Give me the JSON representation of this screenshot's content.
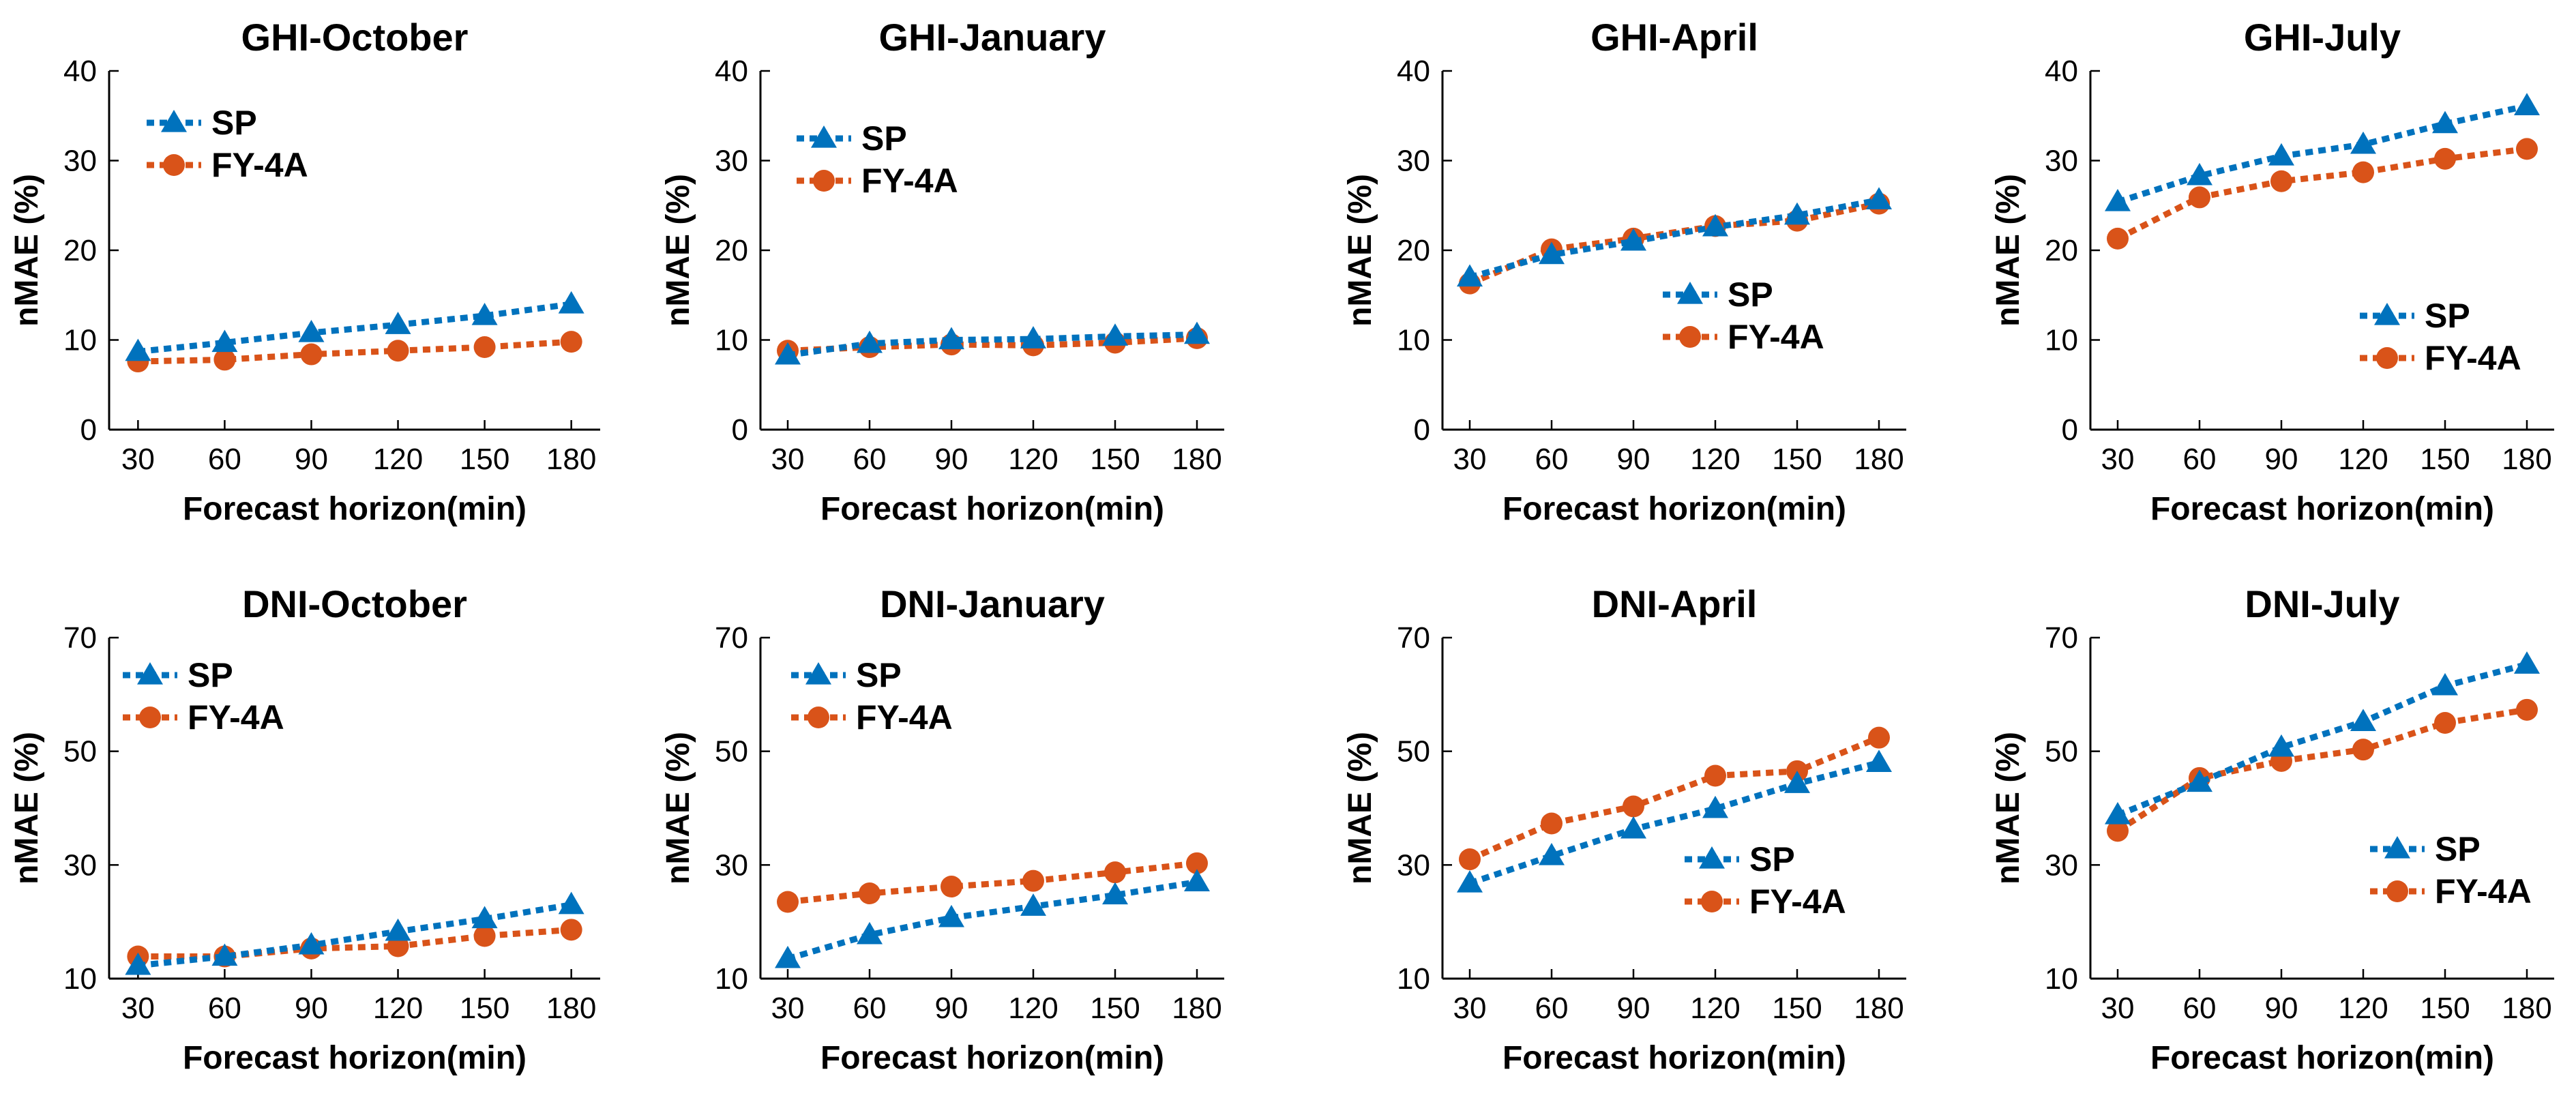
{
  "colors": {
    "SP": "#0072BD",
    "FY-4A": "#D95319",
    "axis": "#000000"
  },
  "chart_data": [
    {
      "type": "line",
      "title": "GHI-October",
      "xlabel": "Forecast horizon(min)",
      "ylabel": "nMAE (%)",
      "x": [
        30,
        60,
        90,
        120,
        150,
        180
      ],
      "xlim": [
        20,
        190
      ],
      "ylim": [
        0,
        40
      ],
      "yticks": [
        0,
        10,
        20,
        30,
        40
      ],
      "grid": false,
      "legend_position": "top-left",
      "series": [
        {
          "name": "SP",
          "values": [
            8.7,
            9.7,
            10.8,
            11.7,
            12.7,
            14.0
          ]
        },
        {
          "name": "FY-4A",
          "values": [
            7.6,
            7.8,
            8.4,
            8.8,
            9.2,
            9.8
          ]
        }
      ]
    },
    {
      "type": "line",
      "title": "GHI-January",
      "xlabel": "Forecast horizon(min)",
      "ylabel": "nMAE (%)",
      "x": [
        30,
        60,
        90,
        120,
        150,
        180
      ],
      "xlim": [
        20,
        190
      ],
      "ylim": [
        0,
        40
      ],
      "yticks": [
        0,
        10,
        20,
        30,
        40
      ],
      "grid": false,
      "legend_position": "top-left",
      "series": [
        {
          "name": "SP",
          "values": [
            8.3,
            9.6,
            10.0,
            10.1,
            10.4,
            10.6
          ]
        },
        {
          "name": "FY-4A",
          "values": [
            8.8,
            9.2,
            9.5,
            9.4,
            9.7,
            10.2
          ]
        }
      ]
    },
    {
      "type": "line",
      "title": "GHI-April",
      "xlabel": "Forecast horizon(min)",
      "ylabel": "nMAE (%)",
      "x": [
        30,
        60,
        90,
        120,
        150,
        180
      ],
      "xlim": [
        20,
        190
      ],
      "ylim": [
        0,
        40
      ],
      "yticks": [
        0,
        10,
        20,
        30,
        40
      ],
      "grid": false,
      "legend_position": "middle-right",
      "series": [
        {
          "name": "SP",
          "values": [
            17.0,
            19.5,
            21.0,
            22.6,
            23.9,
            25.6
          ]
        },
        {
          "name": "FY-4A",
          "values": [
            16.3,
            20.1,
            21.3,
            22.7,
            23.3,
            25.2
          ]
        }
      ]
    },
    {
      "type": "line",
      "title": "GHI-July",
      "xlabel": "Forecast horizon(min)",
      "ylabel": "nMAE (%)",
      "x": [
        30,
        60,
        90,
        120,
        150,
        180
      ],
      "xlim": [
        20,
        190
      ],
      "ylim": [
        0,
        40
      ],
      "yticks": [
        0,
        10,
        20,
        30,
        40
      ],
      "grid": false,
      "legend_position": "bottom-right",
      "series": [
        {
          "name": "SP",
          "values": [
            25.4,
            28.3,
            30.5,
            31.8,
            34.1,
            36.1
          ]
        },
        {
          "name": "FY-4A",
          "values": [
            21.3,
            25.9,
            27.7,
            28.7,
            30.2,
            31.3
          ]
        }
      ]
    },
    {
      "type": "line",
      "title": "DNI-October",
      "xlabel": "Forecast horizon(min)",
      "ylabel": "nMAE (%)",
      "x": [
        30,
        60,
        90,
        120,
        150,
        180
      ],
      "xlim": [
        20,
        190
      ],
      "ylim": [
        10,
        70
      ],
      "yticks": [
        10,
        30,
        50,
        70
      ],
      "grid": false,
      "legend_position": "top-left",
      "series": [
        {
          "name": "SP",
          "values": [
            12.3,
            13.9,
            15.9,
            18.3,
            20.5,
            23.0
          ]
        },
        {
          "name": "FY-4A",
          "values": [
            13.9,
            13.9,
            15.3,
            15.7,
            17.5,
            18.6
          ]
        }
      ]
    },
    {
      "type": "line",
      "title": "DNI-January",
      "xlabel": "Forecast horizon(min)",
      "ylabel": "nMAE (%)",
      "x": [
        30,
        60,
        90,
        120,
        150,
        180
      ],
      "xlim": [
        20,
        190
      ],
      "ylim": [
        10,
        70
      ],
      "yticks": [
        10,
        30,
        50,
        70
      ],
      "grid": false,
      "legend_position": "top-left",
      "series": [
        {
          "name": "SP",
          "values": [
            13.5,
            17.7,
            20.7,
            22.7,
            24.7,
            27.0
          ]
        },
        {
          "name": "FY-4A",
          "values": [
            23.5,
            25.0,
            26.2,
            27.2,
            28.7,
            30.3
          ]
        }
      ]
    },
    {
      "type": "line",
      "title": "DNI-April",
      "xlabel": "Forecast horizon(min)",
      "ylabel": "nMAE (%)",
      "x": [
        30,
        60,
        90,
        120,
        150,
        180
      ],
      "xlim": [
        20,
        190
      ],
      "ylim": [
        10,
        70
      ],
      "yticks": [
        10,
        30,
        50,
        70
      ],
      "grid": false,
      "legend_position": "bottom-right",
      "series": [
        {
          "name": "SP",
          "values": [
            26.8,
            31.6,
            36.3,
            39.9,
            44.3,
            48.0
          ]
        },
        {
          "name": "FY-4A",
          "values": [
            31.0,
            37.3,
            40.3,
            45.7,
            46.5,
            52.4
          ]
        }
      ]
    },
    {
      "type": "line",
      "title": "DNI-July",
      "xlabel": "Forecast horizon(min)",
      "ylabel": "nMAE (%)",
      "x": [
        30,
        60,
        90,
        120,
        150,
        180
      ],
      "xlim": [
        20,
        190
      ],
      "ylim": [
        10,
        70
      ],
      "yticks": [
        10,
        30,
        50,
        70
      ],
      "grid": false,
      "legend_position": "bottom-right",
      "series": [
        {
          "name": "SP",
          "values": [
            38.8,
            44.5,
            50.7,
            55.2,
            61.5,
            65.3
          ]
        },
        {
          "name": "FY-4A",
          "values": [
            36.0,
            45.3,
            48.3,
            50.3,
            55.0,
            57.3
          ]
        }
      ]
    }
  ]
}
